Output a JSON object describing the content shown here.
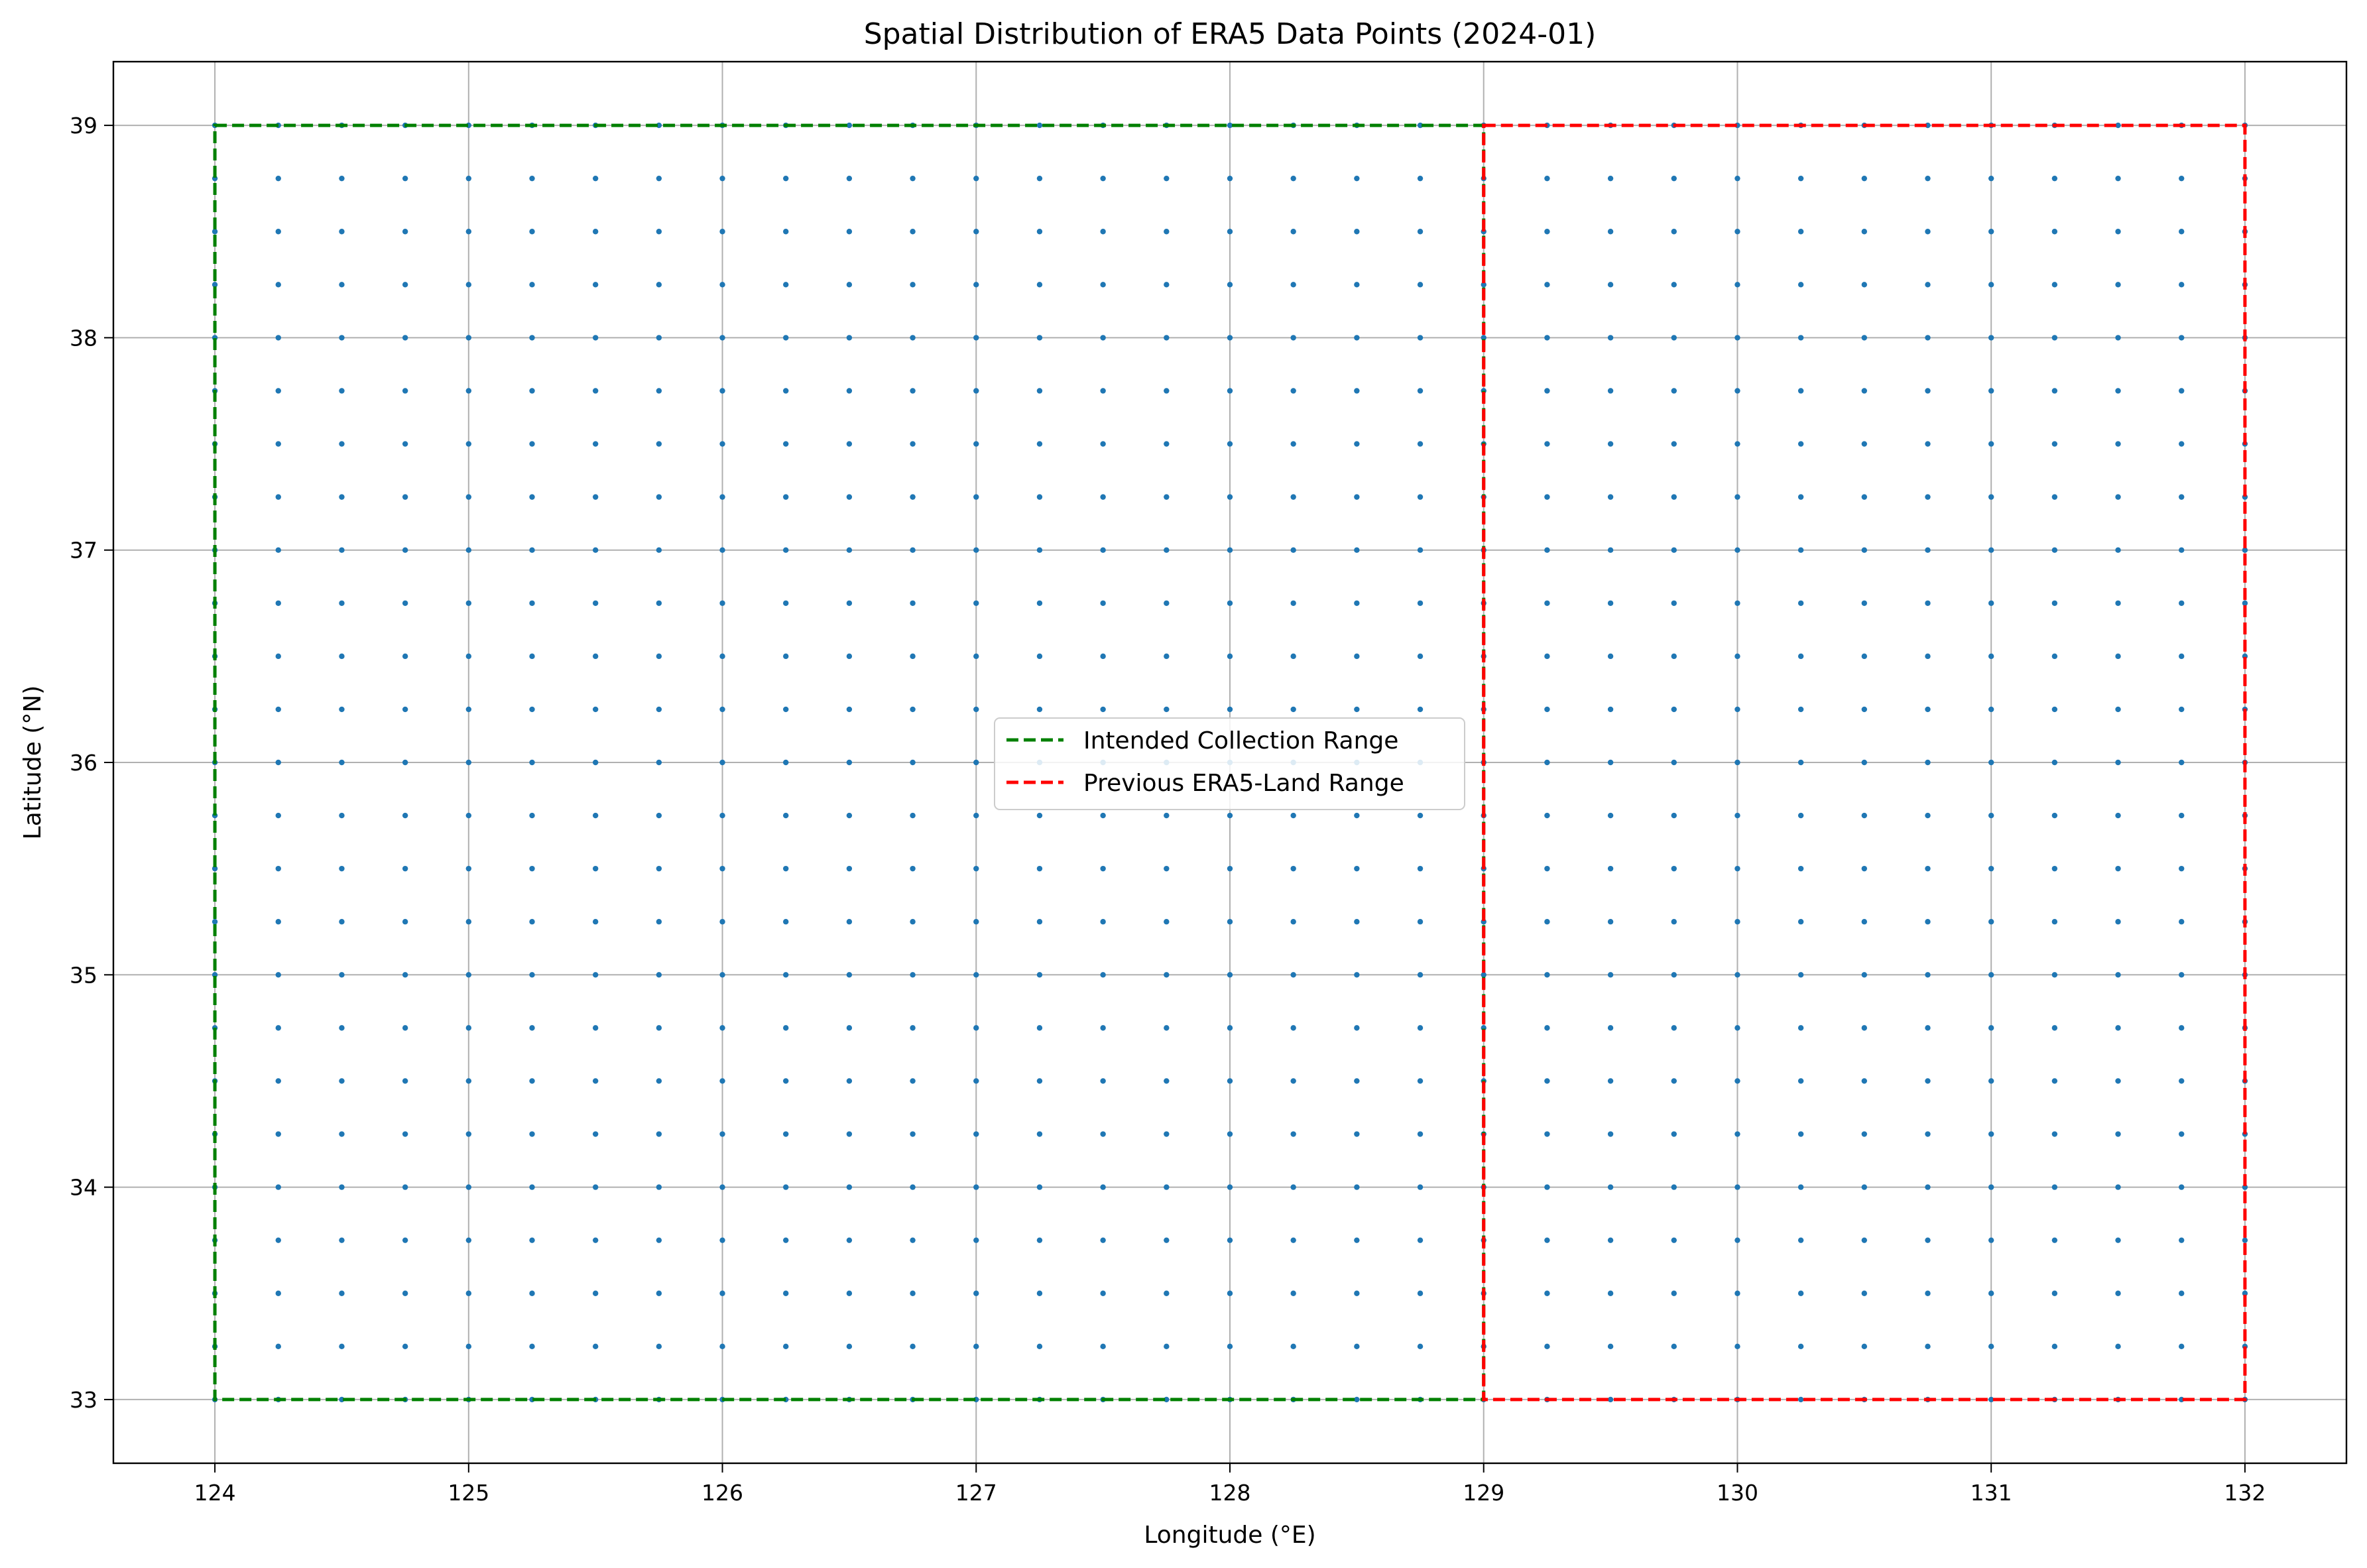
{
  "chart_data": {
    "type": "scatter",
    "title": "Spatial Distribution of ERA5 Data Points (2024-01)",
    "xlabel": "Longitude (°E)",
    "ylabel": "Latitude (°N)",
    "xlim": [
      123.6,
      132.4
    ],
    "ylim": [
      32.7,
      39.3
    ],
    "xticks": [
      124,
      125,
      126,
      127,
      128,
      129,
      130,
      131,
      132
    ],
    "yticks": [
      33,
      34,
      35,
      36,
      37,
      38,
      39
    ],
    "grid": true,
    "legend_position": "center",
    "points": {
      "x_start": 124.0,
      "x_end": 132.0,
      "y_start": 33.0,
      "y_end": 39.0,
      "step": 0.25,
      "color": "#1f77b4"
    },
    "ranges": [
      {
        "name": "Intended Collection Range",
        "color": "#008000",
        "lon": [
          124,
          129
        ],
        "lat": [
          33,
          39
        ]
      },
      {
        "name": "Previous ERA5-Land Range",
        "color": "#ff0000",
        "lon": [
          129,
          132
        ],
        "lat": [
          33,
          39
        ]
      }
    ]
  }
}
